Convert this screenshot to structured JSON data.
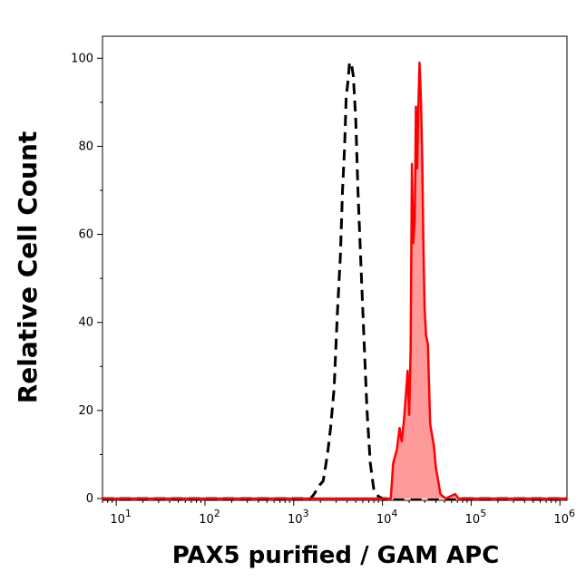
{
  "chart_data": {
    "type": "area",
    "title": "",
    "xlabel": "PAX5 purified / GAM APC",
    "ylabel": "Relative Cell Count",
    "x_scale": "log",
    "xlim": [
      7,
      1200000
    ],
    "ylim": [
      0,
      105
    ],
    "grid": false,
    "legend": "none",
    "yticks": [
      {
        "value": 0,
        "label": "0"
      },
      {
        "value": 20,
        "label": "20"
      },
      {
        "value": 40,
        "label": "40"
      },
      {
        "value": 60,
        "label": "60"
      },
      {
        "value": 80,
        "label": "80"
      },
      {
        "value": 100,
        "label": "100"
      }
    ],
    "xticks": [
      {
        "value": 10,
        "base": "10",
        "exp": "1"
      },
      {
        "value": 100,
        "base": "10",
        "exp": "2"
      },
      {
        "value": 1000,
        "base": "10",
        "exp": "3"
      },
      {
        "value": 10000,
        "base": "10",
        "exp": "4"
      },
      {
        "value": 100000,
        "base": "10",
        "exp": "5"
      },
      {
        "value": 1000000,
        "base": "10",
        "exp": "6"
      }
    ],
    "series": [
      {
        "style": "dashed",
        "color": "#000000",
        "fill": false,
        "x": [
          7,
          1000,
          1550,
          1700,
          1950,
          2150,
          2400,
          2600,
          2850,
          3100,
          3350,
          3550,
          3750,
          3900,
          4100,
          4250,
          4450,
          4700,
          5000,
          5300,
          5700,
          6200,
          6700,
          7300,
          8000,
          9000,
          10000,
          1200000
        ],
        "y": [
          0,
          0,
          0,
          1,
          3,
          4,
          10,
          16,
          25,
          42,
          55,
          70,
          80,
          91,
          95,
          99,
          99,
          96,
          86,
          70,
          54,
          36,
          20,
          8,
          2,
          0.5,
          0,
          0
        ]
      },
      {
        "style": "solid",
        "color": "#ff0000",
        "fill": true,
        "fill_color": "#ff9a9a",
        "x": [
          7,
          12400,
          13200,
          14500,
          15600,
          16500,
          17500,
          18600,
          19200,
          20000,
          20800,
          21500,
          22200,
          23100,
          23800,
          24600,
          25400,
          26200,
          27100,
          28100,
          28900,
          29900,
          31000,
          32500,
          34500,
          36500,
          38000,
          40000,
          42500,
          45000,
          48000,
          52000,
          58000,
          66000,
          72000,
          80000,
          1200000
        ],
        "y": [
          0,
          0,
          8,
          11,
          16,
          13,
          18,
          25,
          29,
          19,
          34,
          76,
          58,
          63,
          89,
          75,
          89,
          99,
          91,
          77,
          58,
          43,
          37,
          35,
          17,
          14,
          12,
          7,
          4,
          1,
          0.5,
          0,
          0.5,
          1,
          0,
          0,
          0
        ]
      }
    ]
  }
}
